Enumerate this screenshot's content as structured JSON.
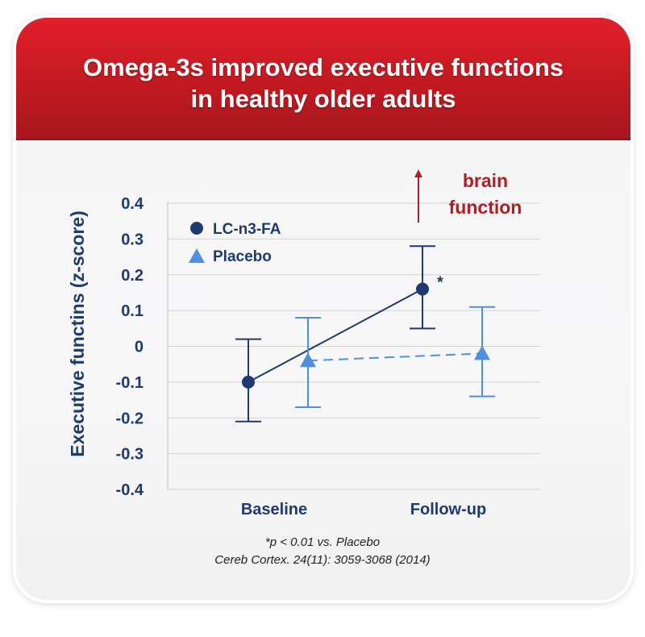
{
  "header": {
    "title_line1": "Omega-3s improved executive functions",
    "title_line2": "in healthy older adults"
  },
  "annotation": {
    "line1": "brain",
    "line2": "function",
    "significance_marker": "*"
  },
  "footnotes": {
    "significance": "*p < 0.01 vs. Placebo",
    "citation": "Cereb Cortex. 24(11): 3059-3068 (2014)"
  },
  "colors": {
    "header_red": "#c81a22",
    "series_dark": "#1f3a6e",
    "series_light": "#4f8fe0",
    "annotation_red": "#b01e25"
  },
  "chart_data": {
    "type": "line",
    "ylabel": "Executive functins (z-score)",
    "xlabel": "",
    "categories": [
      "Baseline",
      "Follow-up"
    ],
    "ylim": [
      -0.4,
      0.4
    ],
    "yticks": [
      "0.4",
      "0.3",
      "0.2",
      "0.1",
      "0",
      "-0.1",
      "-0.2",
      "-0.3",
      "-0.4"
    ],
    "grid": true,
    "legend_position": "top-left",
    "series": [
      {
        "name": "LC-n3-FA",
        "marker": "circle",
        "line_style": "solid",
        "color": "#1f3a6e",
        "values": [
          -0.1,
          0.16
        ],
        "error_low": [
          -0.21,
          0.05
        ],
        "error_high": [
          0.02,
          0.28
        ]
      },
      {
        "name": "Placebo",
        "marker": "triangle",
        "line_style": "dashed",
        "color": "#4f8fe0",
        "values": [
          -0.04,
          -0.02
        ],
        "error_low": [
          -0.17,
          -0.14
        ],
        "error_high": [
          0.08,
          0.11
        ]
      }
    ]
  }
}
